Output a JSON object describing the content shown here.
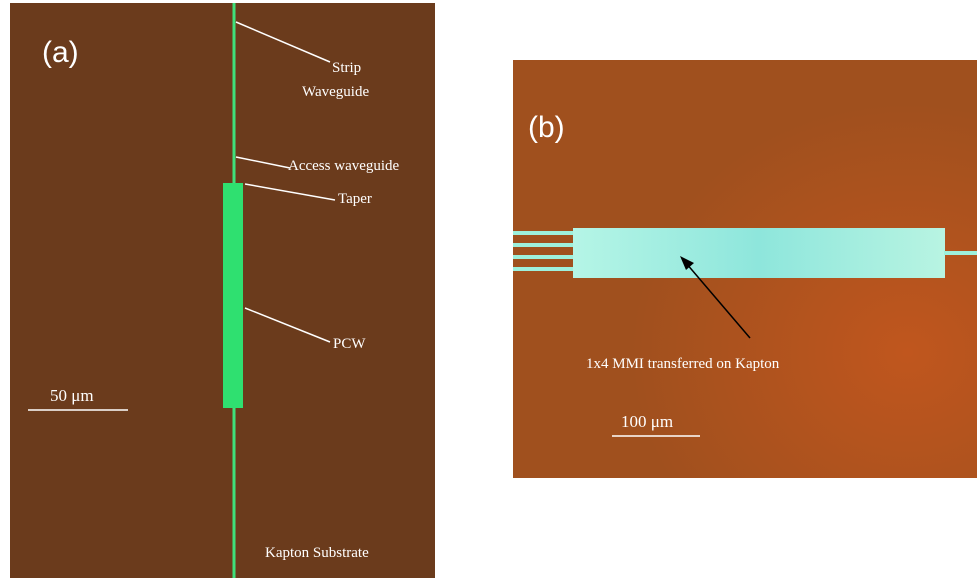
{
  "panel_a": {
    "label": "(a)",
    "annotations": [
      "Strip",
      "Waveguide",
      "Access waveguide",
      "Taper",
      "PCW"
    ],
    "scale_bar": "50 μm",
    "substrate": "Kapton Substrate"
  },
  "panel_b": {
    "label": "(b)",
    "annotation": "1x4 MMI transferred on Kapton",
    "scale_bar": "100 μm"
  }
}
